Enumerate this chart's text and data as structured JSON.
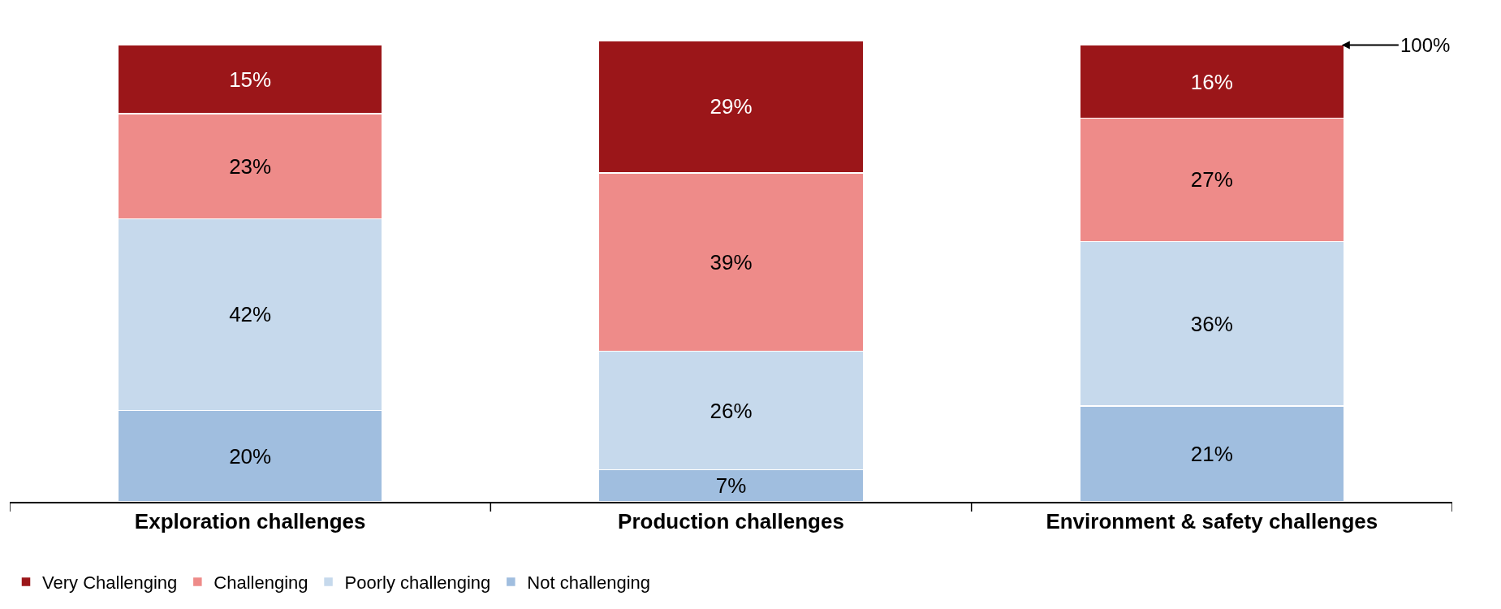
{
  "chart_data": {
    "type": "bar",
    "stacked": true,
    "categories": [
      "Exploration challenges",
      "Production challenges",
      "Environment & safety challenges"
    ],
    "series": [
      {
        "name": "Not challenging",
        "color": "#a0bedf",
        "values": [
          20,
          7,
          21
        ],
        "value_labels": [
          "20%",
          "7%",
          "21%"
        ]
      },
      {
        "name": "Poorly challenging",
        "color": "#c6d9ec",
        "values": [
          42,
          26,
          36
        ],
        "value_labels": [
          "42%",
          "26%",
          "36%"
        ]
      },
      {
        "name": "Challenging",
        "color": "#ee8b89",
        "values": [
          23,
          39,
          27
        ],
        "value_labels": [
          "23%",
          "39%",
          "27%"
        ]
      },
      {
        "name": "Very Challenging",
        "color": "#9b1619",
        "values": [
          15,
          29,
          16
        ],
        "value_labels": [
          "15%",
          "29%",
          "16%"
        ]
      }
    ],
    "annotations": [
      {
        "text": "100%",
        "x": "Environment & safety challenges",
        "y": 100
      }
    ],
    "legend": "bottom left",
    "tick_labels": "x"
  }
}
